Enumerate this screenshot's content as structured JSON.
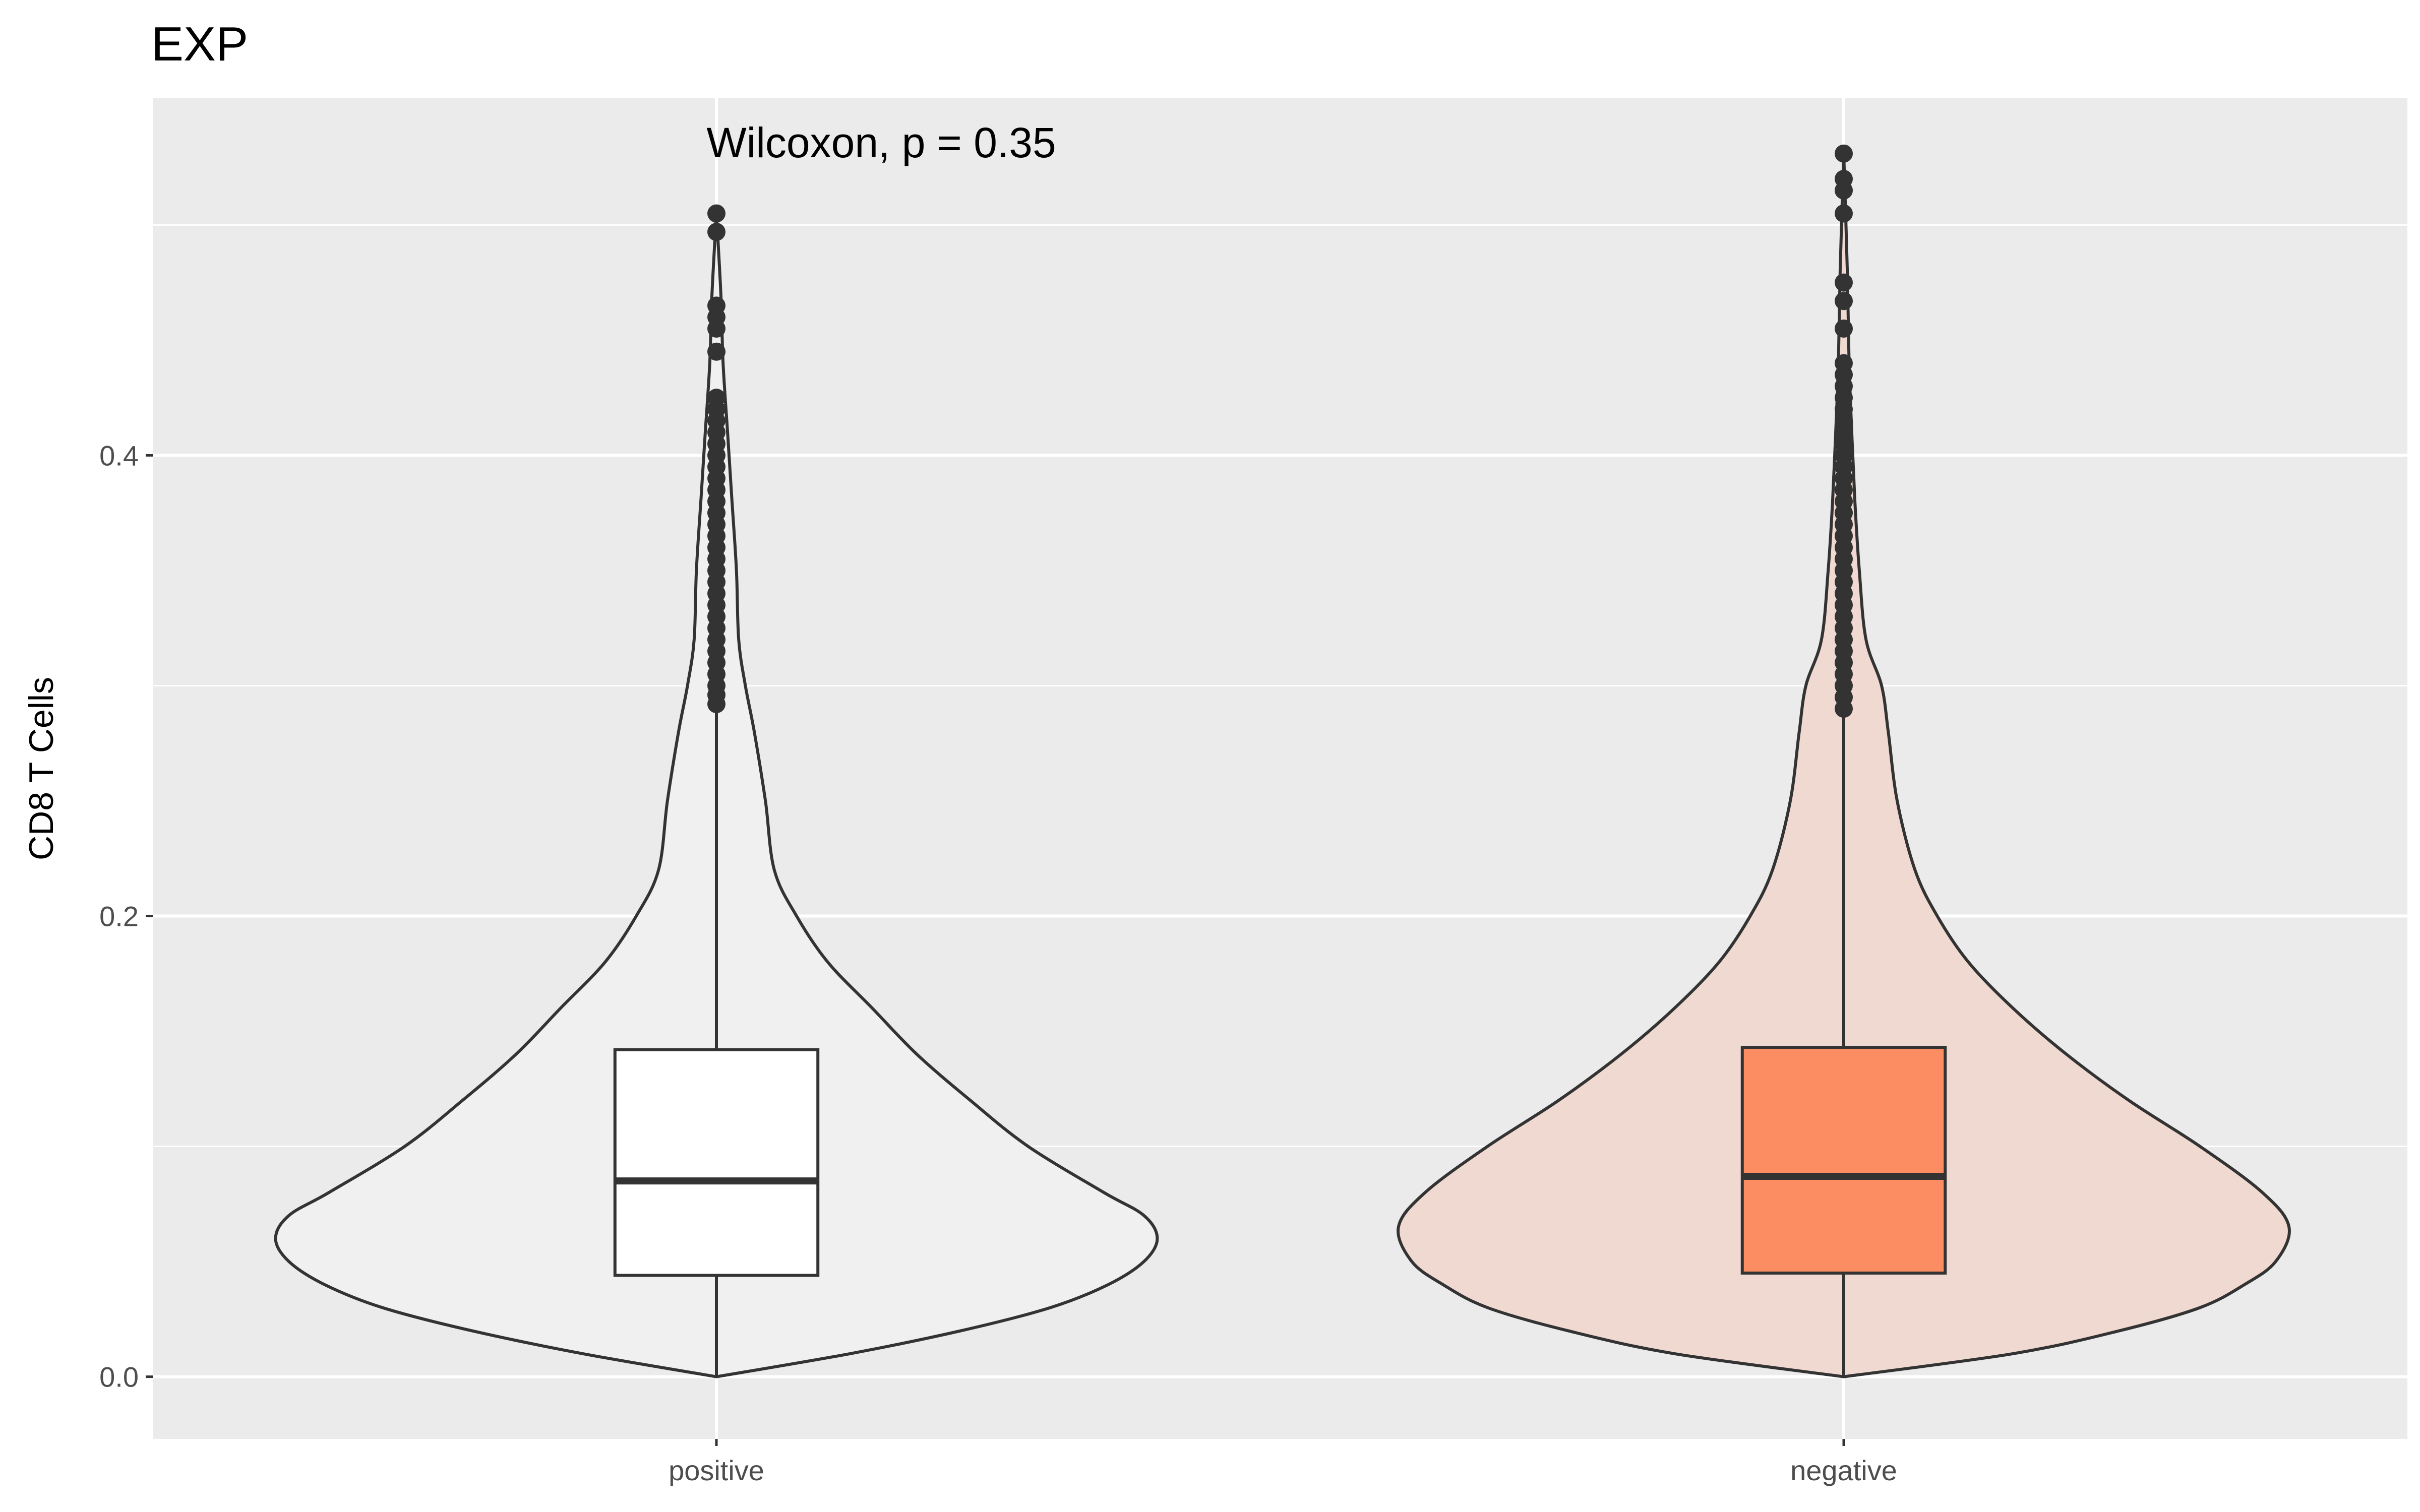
{
  "chart_data": {
    "type": "violin",
    "title": "EXP",
    "xlabel": "",
    "ylabel": "CD8 T Cells",
    "annotation": "Wilcoxon, p = 0.35",
    "categories": [
      "positive",
      "negative"
    ],
    "ylim": [
      -0.027,
      0.555
    ],
    "y_ticks": [
      {
        "value": 0.0,
        "label": "0.0"
      },
      {
        "value": 0.2,
        "label": "0.2"
      },
      {
        "value": 0.4,
        "label": "0.4"
      }
    ],
    "y_minor_ticks": [
      0.1,
      0.3,
      0.5
    ],
    "grid": true,
    "colors": {
      "panel": "#ebebeb",
      "grid": "#ffffff",
      "outline": "#333333",
      "positive_box": "#ffffff",
      "positive_violin": "#f0f0f0",
      "negative_box": "#fc8d62",
      "negative_violin": "#f0d9d1"
    },
    "series": [
      {
        "category": "positive",
        "box": {
          "q1": 0.044,
          "median": 0.085,
          "q3": 0.142,
          "whisker_low": 0.0,
          "whisker_high": 0.29
        },
        "outliers": [
          0.292,
          0.296,
          0.3,
          0.305,
          0.31,
          0.315,
          0.32,
          0.325,
          0.33,
          0.335,
          0.34,
          0.345,
          0.35,
          0.355,
          0.36,
          0.365,
          0.37,
          0.375,
          0.38,
          0.385,
          0.39,
          0.395,
          0.4,
          0.405,
          0.41,
          0.415,
          0.42,
          0.425,
          0.445,
          0.455,
          0.46,
          0.465,
          0.497,
          0.505
        ],
        "density": [
          [
            0.0,
            0.0
          ],
          [
            0.01,
            0.3
          ],
          [
            0.02,
            0.55
          ],
          [
            0.03,
            0.75
          ],
          [
            0.04,
            0.88
          ],
          [
            0.05,
            0.96
          ],
          [
            0.06,
            0.99
          ],
          [
            0.07,
            0.96
          ],
          [
            0.08,
            0.87
          ],
          [
            0.1,
            0.7
          ],
          [
            0.12,
            0.57
          ],
          [
            0.14,
            0.45
          ],
          [
            0.16,
            0.35
          ],
          [
            0.18,
            0.25
          ],
          [
            0.2,
            0.18
          ],
          [
            0.22,
            0.13
          ],
          [
            0.25,
            0.11
          ],
          [
            0.28,
            0.085
          ],
          [
            0.3,
            0.065
          ],
          [
            0.32,
            0.05
          ],
          [
            0.35,
            0.045
          ],
          [
            0.38,
            0.035
          ],
          [
            0.41,
            0.025
          ],
          [
            0.44,
            0.015
          ],
          [
            0.47,
            0.01
          ],
          [
            0.505,
            0.0
          ]
        ]
      },
      {
        "category": "negative",
        "box": {
          "q1": 0.045,
          "median": 0.087,
          "q3": 0.143,
          "whisker_low": 0.0,
          "whisker_high": 0.29
        },
        "outliers": [
          0.29,
          0.295,
          0.3,
          0.305,
          0.31,
          0.315,
          0.32,
          0.325,
          0.33,
          0.335,
          0.34,
          0.345,
          0.35,
          0.355,
          0.36,
          0.365,
          0.37,
          0.375,
          0.38,
          0.385,
          0.39,
          0.395,
          0.4,
          0.405,
          0.41,
          0.415,
          0.42,
          0.425,
          0.43,
          0.435,
          0.44,
          0.455,
          0.467,
          0.475,
          0.505,
          0.515,
          0.52,
          0.531
        ],
        "density": [
          [
            0.0,
            0.0
          ],
          [
            0.01,
            0.38
          ],
          [
            0.02,
            0.62
          ],
          [
            0.03,
            0.8
          ],
          [
            0.04,
            0.9
          ],
          [
            0.05,
            0.97
          ],
          [
            0.065,
            1.0
          ],
          [
            0.08,
            0.94
          ],
          [
            0.1,
            0.8
          ],
          [
            0.12,
            0.64
          ],
          [
            0.14,
            0.5
          ],
          [
            0.16,
            0.38
          ],
          [
            0.18,
            0.28
          ],
          [
            0.2,
            0.21
          ],
          [
            0.22,
            0.16
          ],
          [
            0.25,
            0.12
          ],
          [
            0.28,
            0.1
          ],
          [
            0.3,
            0.085
          ],
          [
            0.32,
            0.05
          ],
          [
            0.35,
            0.035
          ],
          [
            0.38,
            0.025
          ],
          [
            0.41,
            0.018
          ],
          [
            0.44,
            0.012
          ],
          [
            0.48,
            0.008
          ],
          [
            0.531,
            0.0
          ]
        ]
      }
    ]
  }
}
